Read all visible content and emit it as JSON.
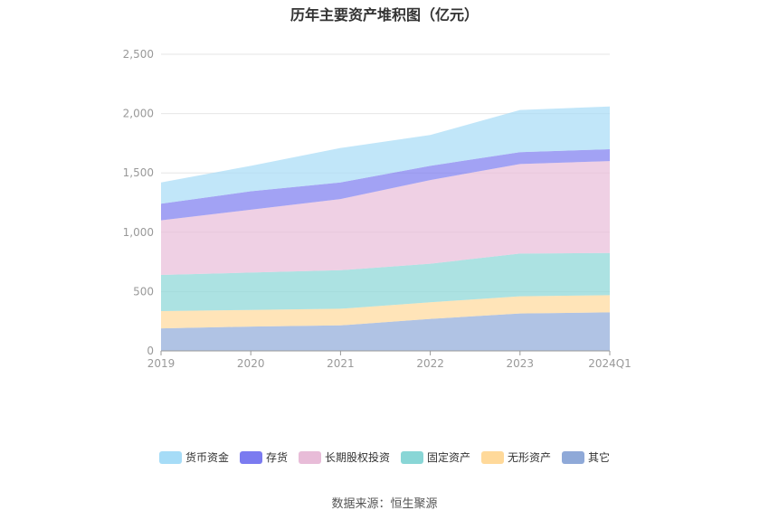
{
  "title": "历年主要资产堆积图（亿元）",
  "source": "数据来源：恒生聚源",
  "chart_data": {
    "type": "area",
    "stacked": true,
    "categories": [
      "2019",
      "2020",
      "2021",
      "2022",
      "2023",
      "2024Q1"
    ],
    "ylim": [
      0,
      2500
    ],
    "yticks": [
      "0",
      "500",
      "1,000",
      "1,500",
      "2,000",
      "2,500"
    ],
    "grid": true,
    "legend_position": "bottom",
    "series": [
      {
        "name": "其它",
        "color": "#8fa9d8",
        "values": [
          190,
          205,
          215,
          270,
          315,
          325
        ]
      },
      {
        "name": "无形资产",
        "color": "#ffd99a",
        "values": [
          145,
          140,
          140,
          140,
          145,
          145
        ]
      },
      {
        "name": "固定资产",
        "color": "#89d6d6",
        "values": [
          305,
          315,
          325,
          325,
          360,
          355
        ]
      },
      {
        "name": "长期股权投资",
        "color": "#e8bcd8",
        "values": [
          460,
          530,
          600,
          705,
          755,
          775
        ]
      },
      {
        "name": "存货",
        "color": "#7b7bf0",
        "values": [
          140,
          155,
          140,
          120,
          100,
          100
        ]
      },
      {
        "name": "货币资金",
        "color": "#a6dcf7",
        "values": [
          180,
          215,
          290,
          260,
          355,
          360
        ]
      }
    ],
    "legend_order": [
      "货币资金",
      "存货",
      "长期股权投资",
      "固定资产",
      "无形资产",
      "其它"
    ]
  }
}
